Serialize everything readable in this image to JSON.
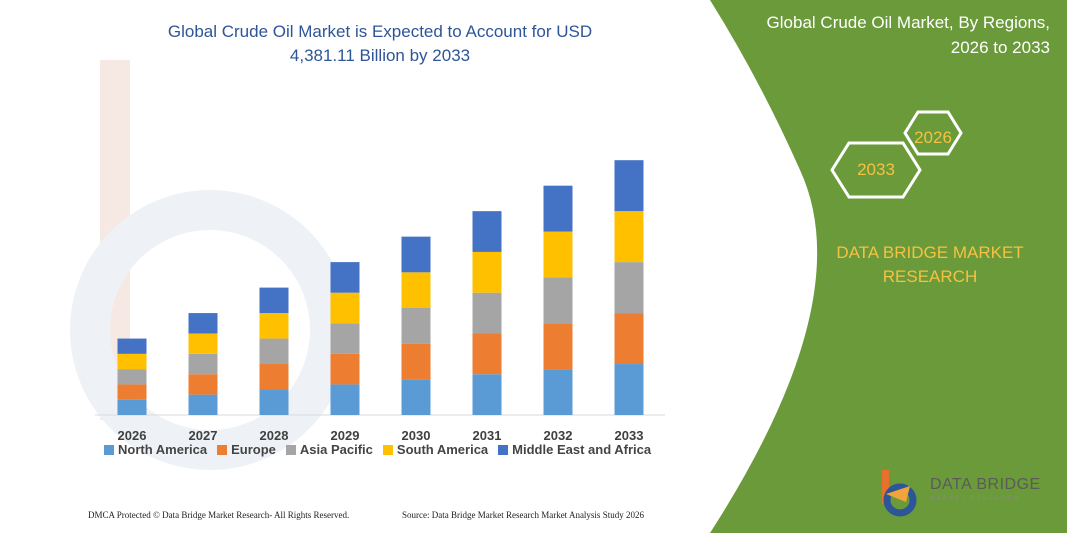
{
  "header": {
    "title_line1": "Global Crude Oil Market is Expected to Account for USD",
    "title_line2": "4,381.11 Billion by 2033"
  },
  "side_panel": {
    "title_line1": "Global Crude Oil Market, By Regions,",
    "title_line2": "2026 to 2033",
    "hex_start_year": "2026",
    "hex_end_year": "2033",
    "brand_line1": "DATA BRIDGE MARKET",
    "brand_line2": "RESEARCH",
    "panel_color": "#6a9a3a"
  },
  "logo": {
    "name": "DATA BRIDGE",
    "tagline": "MARKET RESEARCH"
  },
  "footer": {
    "left": "DMCA Protected © Data Bridge Market Research-  All Rights Reserved.",
    "right": "Source: Data Bridge Market Research  Market Analysis Study 2026"
  },
  "chart_data": {
    "type": "bar",
    "stacked": true,
    "categories": [
      "2026",
      "2027",
      "2028",
      "2029",
      "2030",
      "2031",
      "2032",
      "2033"
    ],
    "series": [
      {
        "name": "North America",
        "color": "#5b9bd5",
        "values": [
          15,
          20,
          25,
          30,
          35,
          40,
          45,
          50
        ]
      },
      {
        "name": "Europe",
        "color": "#ed7d31",
        "values": [
          15,
          20,
          25,
          30,
          35,
          40,
          45,
          50
        ]
      },
      {
        "name": "Asia Pacific",
        "color": "#a5a5a5",
        "values": [
          15,
          20,
          25,
          30,
          35,
          40,
          45,
          50
        ]
      },
      {
        "name": "South America",
        "color": "#ffc000",
        "values": [
          15,
          20,
          25,
          30,
          35,
          40,
          45,
          50
        ]
      },
      {
        "name": "Middle East and Africa",
        "color": "#4472c4",
        "values": [
          15,
          20,
          25,
          30,
          35,
          40,
          45,
          50
        ]
      }
    ],
    "ylim": [
      0,
      260
    ],
    "grid": false,
    "legend_position": "bottom"
  }
}
